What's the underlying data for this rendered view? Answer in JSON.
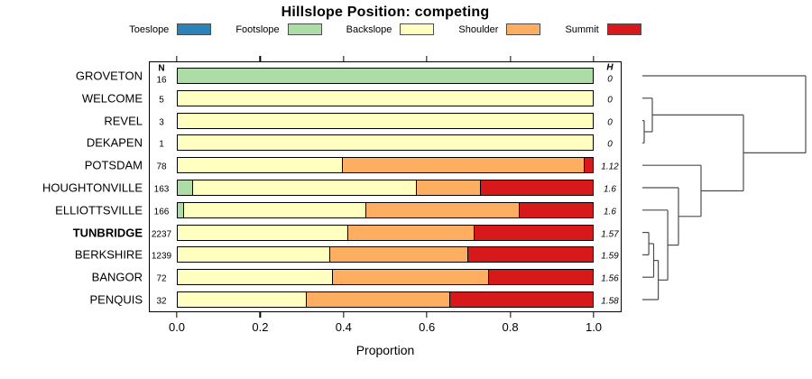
{
  "title": "Hillslope Position: competing",
  "legend": [
    {
      "label": "Toeslope",
      "color": "#2b83ba"
    },
    {
      "label": "Footslope",
      "color": "#abdda4"
    },
    {
      "label": "Backslope",
      "color": "#ffffbf"
    },
    {
      "label": "Shoulder",
      "color": "#fdae61"
    },
    {
      "label": "Summit",
      "color": "#d7191c"
    }
  ],
  "columns": {
    "n_header": "N",
    "h_header": "H"
  },
  "xaxis": {
    "label": "Proportion",
    "ticks": [
      0,
      0.2,
      0.4,
      0.6,
      0.8,
      1.0
    ],
    "tick_labels": [
      "0.0",
      "0.2",
      "0.4",
      "0.6",
      "0.8",
      "1.0"
    ]
  },
  "chart_data": {
    "type": "bar",
    "subtype": "horizontal-stacked-proportion-with-dendrogram",
    "title": "Hillslope Position: competing",
    "xlabel": "Proportion",
    "xlim": [
      0,
      1
    ],
    "stack_categories": [
      "Toeslope",
      "Footslope",
      "Backslope",
      "Shoulder",
      "Summit"
    ],
    "stack_colors": [
      "#2b83ba",
      "#abdda4",
      "#ffffbf",
      "#fdae61",
      "#d7191c"
    ],
    "rows": [
      {
        "name": "GROVETON",
        "n": "16",
        "h": "0",
        "bold": false,
        "values": [
          0,
          1,
          0,
          0,
          0
        ]
      },
      {
        "name": "WELCOME",
        "n": "5",
        "h": "0",
        "bold": false,
        "values": [
          0,
          0,
          1,
          0,
          0
        ]
      },
      {
        "name": "REVEL",
        "n": "3",
        "h": "0",
        "bold": false,
        "values": [
          0,
          0,
          1,
          0,
          0
        ]
      },
      {
        "name": "DEKAPEN",
        "n": "1",
        "h": "0",
        "bold": false,
        "values": [
          0,
          0,
          1,
          0,
          0
        ]
      },
      {
        "name": "POTSDAM",
        "n": "78",
        "h": "1.12",
        "bold": false,
        "values": [
          0,
          0,
          0.4,
          0.58,
          0.02
        ]
      },
      {
        "name": "HOUGHTONVILLE",
        "n": "163",
        "h": "1.6",
        "bold": false,
        "values": [
          0,
          0.041,
          0.535,
          0.154,
          0.27
        ]
      },
      {
        "name": "ELLIOTTSVILLE",
        "n": "166",
        "h": "1.6",
        "bold": false,
        "values": [
          0,
          0.018,
          0.438,
          0.367,
          0.177
        ]
      },
      {
        "name": "TUNBRIDGE",
        "n": "2237",
        "h": "1.57",
        "bold": true,
        "values": [
          0,
          0,
          0.413,
          0.302,
          0.285
        ]
      },
      {
        "name": "BERKSHIRE",
        "n": "1239",
        "h": "1.59",
        "bold": false,
        "values": [
          0,
          0,
          0.37,
          0.33,
          0.3
        ]
      },
      {
        "name": "BANGOR",
        "n": "72",
        "h": "1.56",
        "bold": false,
        "values": [
          0,
          0,
          0.375,
          0.375,
          0.25
        ]
      },
      {
        "name": "PENQUIS",
        "n": "32",
        "h": "1.58",
        "bold": false,
        "values": [
          0,
          0,
          0.3125,
          0.3435,
          0.344
        ]
      }
    ],
    "dendrogram": {
      "orientation": "right",
      "merges": [
        {
          "id": "m1",
          "a": "REVEL",
          "b": "DEKAPEN",
          "h": 0.011
        },
        {
          "id": "m2",
          "a": "TUNBRIDGE",
          "b": "BERKSHIRE",
          "h": 0.039
        },
        {
          "id": "m3",
          "a": "WELCOME",
          "b": "m1",
          "h": 0.061
        },
        {
          "id": "m4",
          "a": "m2",
          "b": "BANGOR",
          "h": 0.069
        },
        {
          "id": "m5",
          "a": "m4",
          "b": "PENQUIS",
          "h": 0.097
        },
        {
          "id": "m6",
          "a": "ELLIOTTSVILLE",
          "b": "m5",
          "h": 0.155
        },
        {
          "id": "m7",
          "a": "HOUGHTONVILLE",
          "b": "m6",
          "h": 0.221
        },
        {
          "id": "m8",
          "a": "POTSDAM",
          "b": "m7",
          "h": 0.359
        },
        {
          "id": "m9",
          "a": "m3",
          "b": "m8",
          "h": 0.619
        },
        {
          "id": "m10",
          "a": "GROVETON",
          "b": "m9",
          "h": 1.0
        }
      ]
    }
  }
}
